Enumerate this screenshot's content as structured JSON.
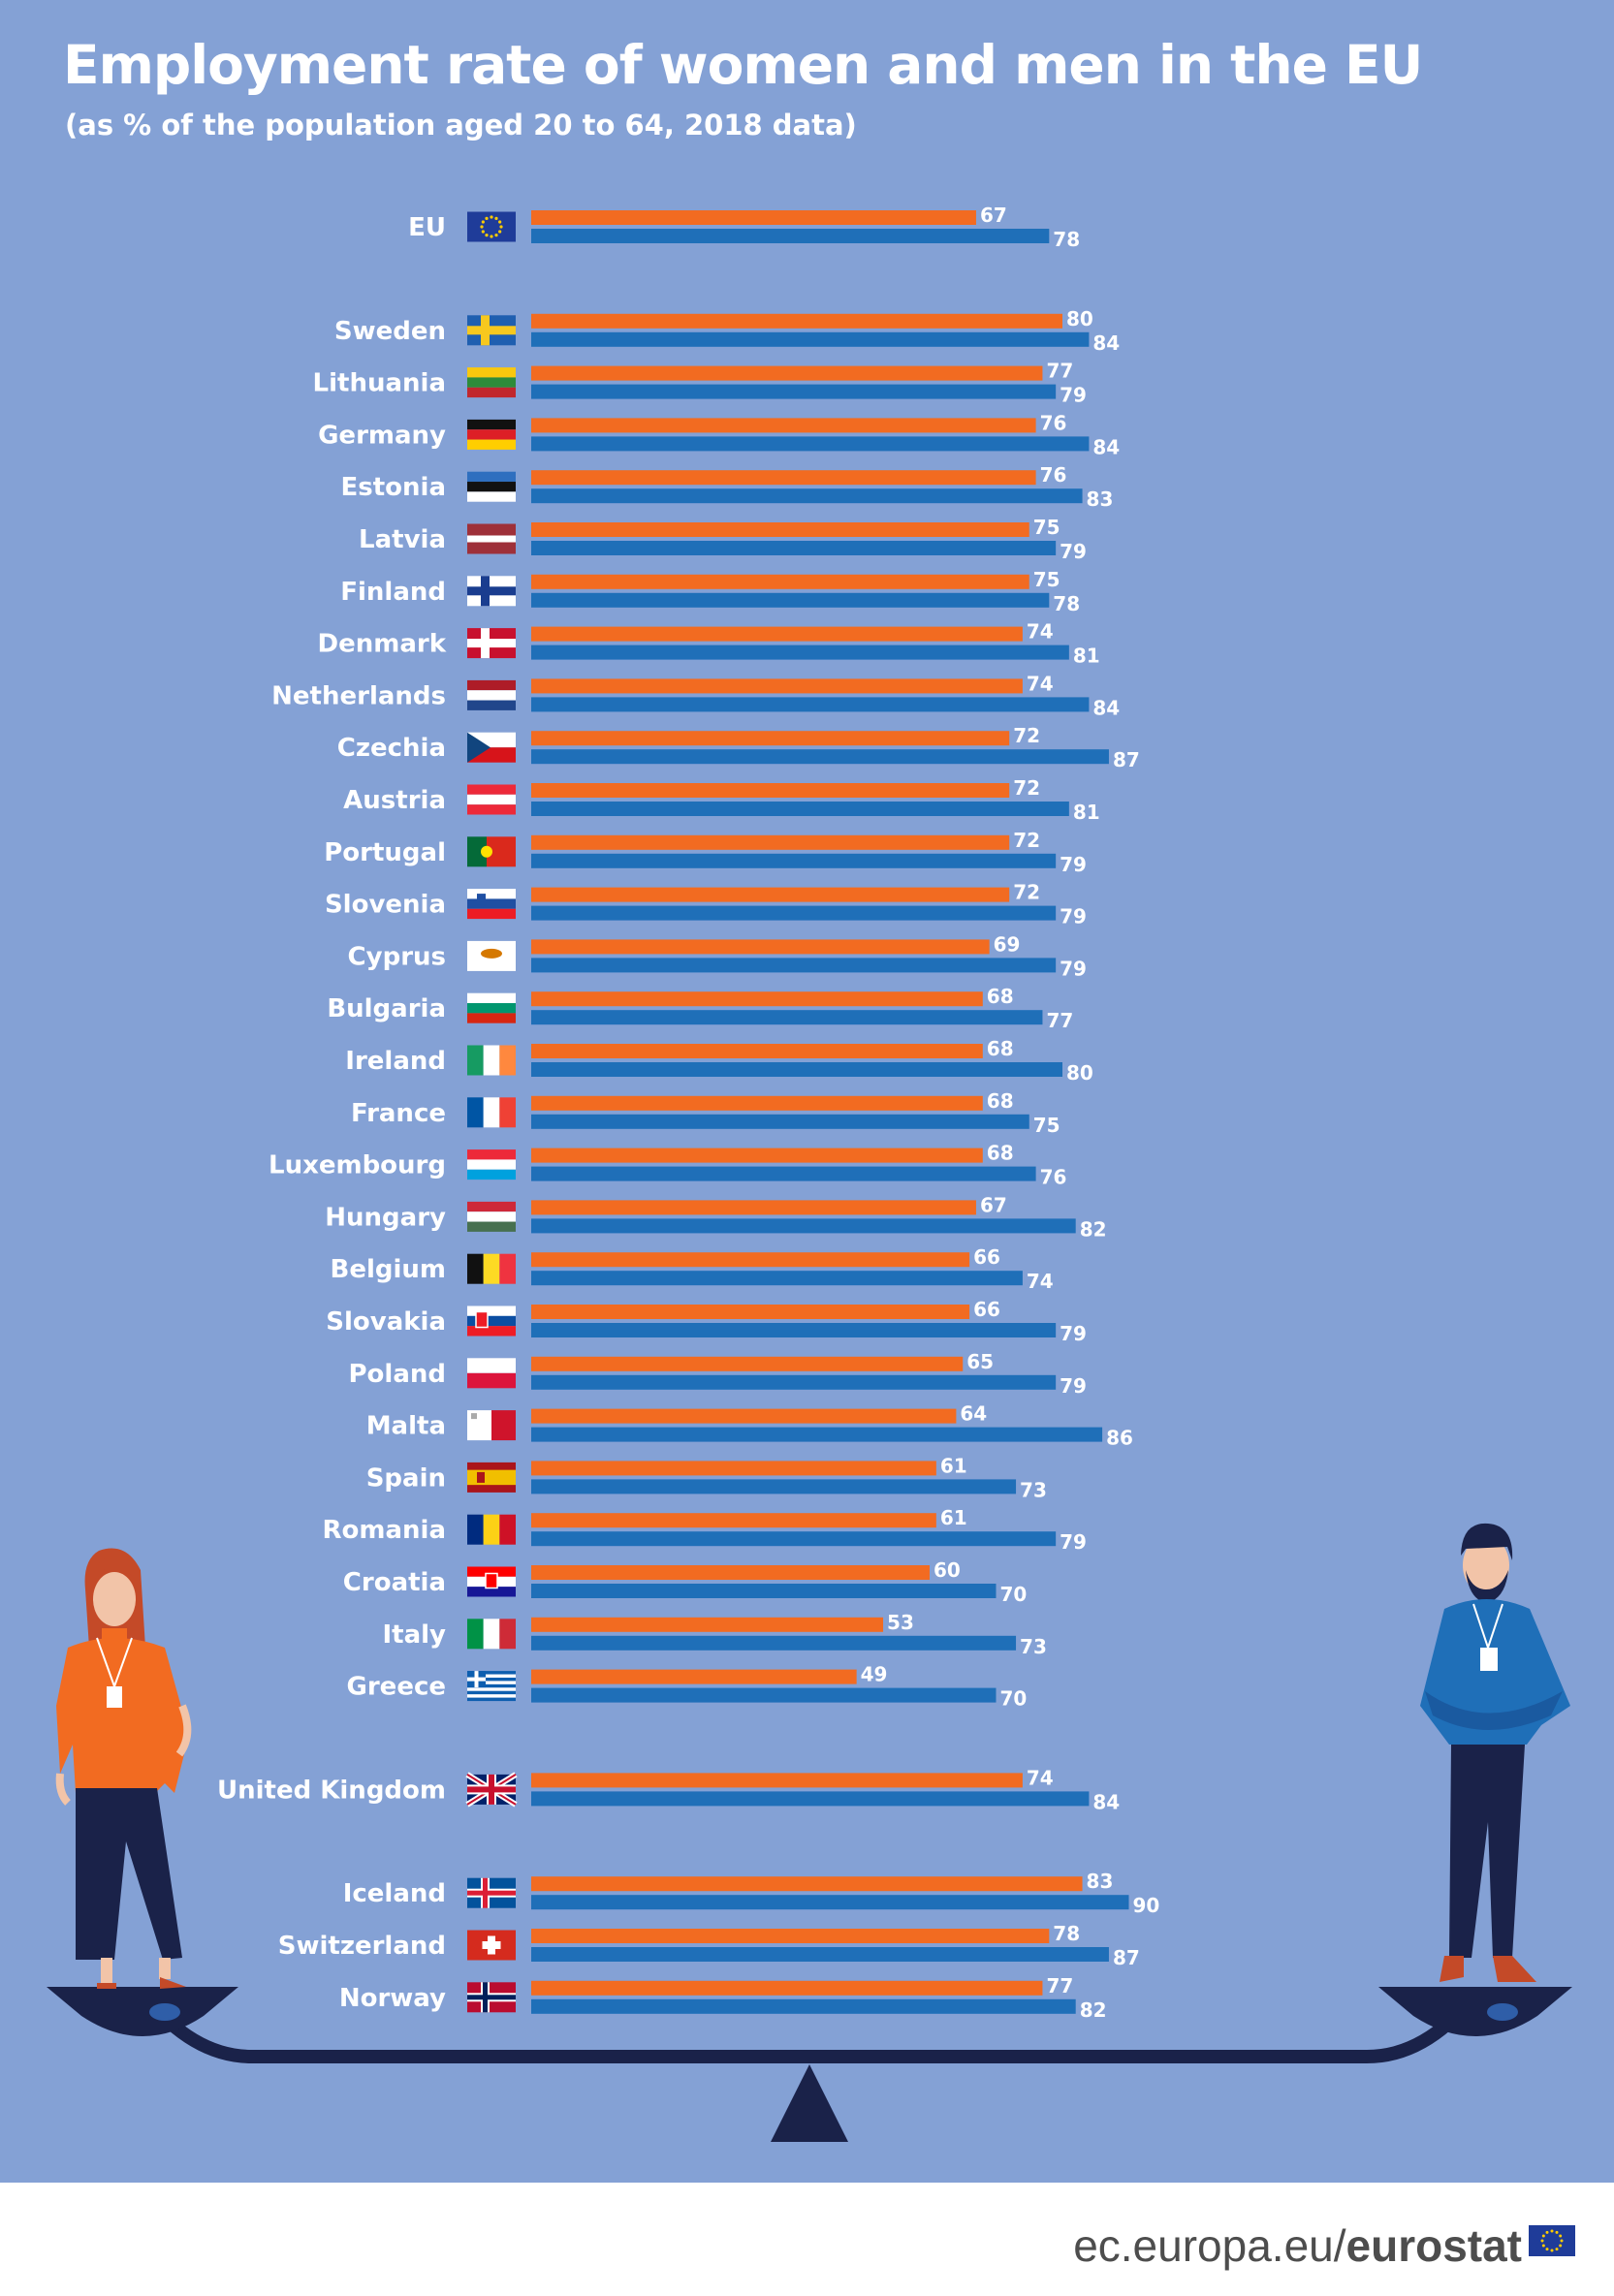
{
  "title": "Employment rate of women and men in the EU",
  "subtitle": "(as % of the population aged 20 to 64, 2018 data)",
  "footer": {
    "domain": "ec.europa.eu/",
    "brand": "eurostat",
    "logo_icon": "eu-flag-icon"
  },
  "colors": {
    "background": "#84a1d5",
    "women": "#f26b21",
    "men": "#1f6fb8",
    "ink": "#1a2249"
  },
  "chart_data": {
    "type": "bar",
    "orientation": "horizontal",
    "title": "Employment rate of women and men in the EU",
    "subtitle": "(as % of the population aged 20 to 64, 2018 data)",
    "xlim": [
      0,
      100
    ],
    "series": [
      {
        "name": "Women",
        "color": "#f26b21"
      },
      {
        "name": "Men",
        "color": "#1f6fb8"
      }
    ],
    "rows": [
      {
        "country": "EU",
        "women": 67,
        "men": 78
      },
      {
        "country": "Sweden",
        "women": 80,
        "men": 84
      },
      {
        "country": "Lithuania",
        "women": 77,
        "men": 79
      },
      {
        "country": "Germany",
        "women": 76,
        "men": 84
      },
      {
        "country": "Estonia",
        "women": 76,
        "men": 83
      },
      {
        "country": "Latvia",
        "women": 75,
        "men": 79
      },
      {
        "country": "Finland",
        "women": 75,
        "men": 78
      },
      {
        "country": "Denmark",
        "women": 74,
        "men": 81
      },
      {
        "country": "Netherlands",
        "women": 74,
        "men": 84
      },
      {
        "country": "Czechia",
        "women": 72,
        "men": 87
      },
      {
        "country": "Austria",
        "women": 72,
        "men": 81
      },
      {
        "country": "Portugal",
        "women": 72,
        "men": 79
      },
      {
        "country": "Slovenia",
        "women": 72,
        "men": 79
      },
      {
        "country": "Cyprus",
        "women": 69,
        "men": 79
      },
      {
        "country": "Bulgaria",
        "women": 68,
        "men": 77
      },
      {
        "country": "Ireland",
        "women": 68,
        "men": 80
      },
      {
        "country": "France",
        "women": 68,
        "men": 75
      },
      {
        "country": "Luxembourg",
        "women": 68,
        "men": 76
      },
      {
        "country": "Hungary",
        "women": 67,
        "men": 82
      },
      {
        "country": "Belgium",
        "women": 66,
        "men": 74
      },
      {
        "country": "Slovakia",
        "women": 66,
        "men": 79
      },
      {
        "country": "Poland",
        "women": 65,
        "men": 79
      },
      {
        "country": "Malta",
        "women": 64,
        "men": 86
      },
      {
        "country": "Spain",
        "women": 61,
        "men": 73
      },
      {
        "country": "Romania",
        "women": 61,
        "men": 79
      },
      {
        "country": "Croatia",
        "women": 60,
        "men": 70
      },
      {
        "country": "Italy",
        "women": 53,
        "men": 73
      },
      {
        "country": "Greece",
        "women": 49,
        "men": 70
      },
      {
        "country": "United Kingdom",
        "women": 74,
        "men": 84
      },
      {
        "country": "Iceland",
        "women": 83,
        "men": 90
      },
      {
        "country": "Switzerland",
        "women": 78,
        "men": 87
      },
      {
        "country": "Norway",
        "women": 77,
        "men": 82
      }
    ]
  }
}
